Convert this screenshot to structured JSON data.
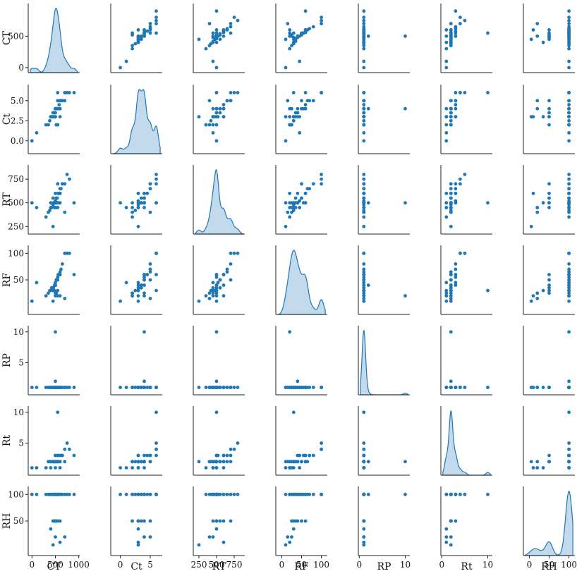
{
  "chart_data": {
    "type": "scatter",
    "subtype": "pairplot",
    "title": "",
    "variables": [
      "CT",
      "Ct",
      "RT",
      "RF",
      "RP",
      "Rt",
      "RH"
    ],
    "variable_labels": {
      "CT": "CT",
      "Ct": "Ct",
      "RT": "RT",
      "RF": "RF",
      "RP": "RP",
      "Rt": "Rt",
      "RH": "RH"
    },
    "ranges": {
      "CT": [
        -80,
        1020
      ],
      "Ct": [
        -1.6,
        7.0
      ],
      "RT": [
        170,
        900
      ],
      "RF": [
        -15,
        115
      ],
      "RP": [
        -0.2,
        11.0
      ],
      "Rt": [
        -0.2,
        11.0
      ],
      "RH": [
        -15,
        115
      ]
    },
    "ticks": {
      "CT": [
        0,
        500,
        1000
      ],
      "Ct": [
        0.0,
        2.5,
        5.0
      ],
      "RT": [
        250,
        500,
        750
      ],
      "RF": [
        50,
        100
      ],
      "RP": [
        5,
        10
      ],
      "Rt": [
        5,
        10
      ],
      "RH": [
        50,
        100
      ]
    },
    "tick_labels": {
      "x": {
        "CT": [
          "0",
          "500",
          "1000"
        ],
        "Ct": [
          "0",
          "5"
        ],
        "RT": [
          "250",
          "500",
          "750"
        ],
        "RF": [
          "0",
          "50",
          "100"
        ],
        "RP": [
          "0",
          "10"
        ],
        "Rt": [
          "0",
          "10"
        ],
        "RH": [
          "0",
          "50",
          "100"
        ]
      },
      "y": {
        "CT": [
          "0",
          "500"
        ],
        "Ct": [
          "0.0",
          "2.5",
          "5.0"
        ],
        "RT": [
          "250",
          "500",
          "750"
        ],
        "RF": [
          "50",
          "100"
        ],
        "RP": [
          "5",
          "10"
        ],
        "Rt": [
          "5",
          "10"
        ],
        "RH": [
          "50",
          "100"
        ]
      }
    },
    "diagonal": "kde",
    "marker_color": "#1f77b4",
    "grid": false,
    "legend": "none",
    "records": [
      [
        0,
        0,
        500,
        10,
        1,
        1,
        100
      ],
      [
        100,
        1,
        450,
        45,
        1,
        1,
        100
      ],
      [
        300,
        2,
        350,
        20,
        1,
        1,
        100
      ],
      [
        350,
        2,
        400,
        25,
        1,
        2,
        100
      ],
      [
        380,
        2.5,
        420,
        30,
        1,
        2,
        100
      ],
      [
        400,
        3,
        450,
        30,
        1,
        2,
        100
      ],
      [
        420,
        3,
        450,
        35,
        1,
        2,
        100
      ],
      [
        450,
        3,
        480,
        30,
        1,
        2,
        100
      ],
      [
        460,
        3.5,
        500,
        35,
        1,
        2,
        100
      ],
      [
        480,
        3.5,
        500,
        40,
        1,
        2,
        100
      ],
      [
        500,
        3.5,
        500,
        40,
        1,
        2,
        100
      ],
      [
        500,
        3,
        520,
        45,
        1,
        3,
        100
      ],
      [
        520,
        4,
        550,
        50,
        1,
        2,
        100
      ],
      [
        540,
        4,
        550,
        50,
        1,
        2,
        100
      ],
      [
        550,
        4,
        500,
        55,
        1,
        3,
        100
      ],
      [
        560,
        4,
        600,
        60,
        1,
        2,
        100
      ],
      [
        580,
        4.5,
        600,
        60,
        1,
        3,
        100
      ],
      [
        600,
        4,
        600,
        60,
        1,
        2,
        100
      ],
      [
        600,
        5,
        650,
        65,
        1,
        2,
        100
      ],
      [
        620,
        5,
        650,
        70,
        1,
        3,
        100
      ],
      [
        650,
        5,
        700,
        80,
        1,
        3,
        100
      ],
      [
        700,
        6,
        700,
        100,
        1,
        4,
        100
      ],
      [
        750,
        6,
        800,
        100,
        1,
        5,
        100
      ],
      [
        800,
        6,
        750,
        100,
        1,
        4,
        100
      ],
      [
        900,
        6,
        500,
        60,
        1,
        3,
        100
      ],
      [
        550,
        2,
        450,
        20,
        1,
        2,
        100
      ],
      [
        520,
        2,
        500,
        25,
        1,
        2,
        50
      ],
      [
        480,
        3,
        450,
        30,
        1,
        2,
        50
      ],
      [
        500,
        3,
        600,
        40,
        1,
        3,
        50
      ],
      [
        450,
        3.5,
        550,
        35,
        1,
        2,
        50
      ],
      [
        600,
        4,
        500,
        60,
        1,
        2,
        50
      ],
      [
        550,
        5,
        700,
        50,
        1,
        2,
        50
      ],
      [
        400,
        3,
        500,
        30,
        1,
        1,
        35
      ],
      [
        500,
        4,
        450,
        25,
        1,
        1,
        20
      ],
      [
        600,
        3,
        600,
        20,
        1,
        1,
        10
      ],
      [
        700,
        5,
        400,
        15,
        1,
        2,
        20
      ],
      [
        450,
        3,
        250,
        10,
        1,
        2,
        5
      ],
      [
        500,
        4,
        500,
        40,
        2,
        2,
        100
      ],
      [
        500,
        4,
        500,
        20,
        10,
        2,
        100
      ],
      [
        550,
        6,
        500,
        30,
        1,
        10,
        100
      ]
    ]
  }
}
